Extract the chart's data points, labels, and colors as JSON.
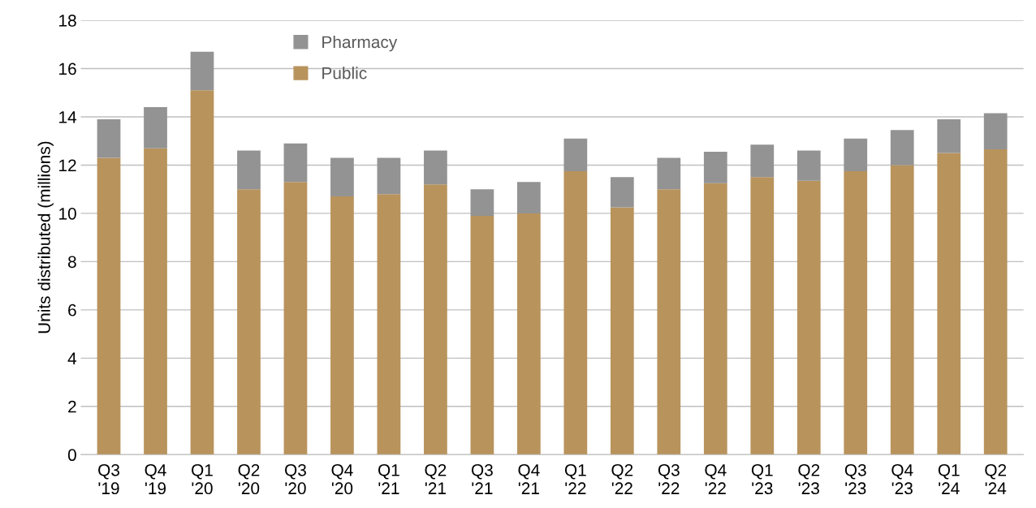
{
  "chart_data": {
    "type": "bar",
    "stacked": true,
    "ylabel": "Units distributed (millions)",
    "categories": [
      "Q3\n'19",
      "Q4\n'19",
      "Q1\n'20",
      "Q2\n'20",
      "Q3\n'20",
      "Q4\n'20",
      "Q1\n'21",
      "Q2\n'21",
      "Q3\n'21",
      "Q4\n'21",
      "Q1\n'22",
      "Q2\n'22",
      "Q3\n'22",
      "Q4\n'22",
      "Q1\n'23",
      "Q2\n'23",
      "Q3\n'23",
      "Q4\n'23",
      "Q1\n'24",
      "Q2\n'24"
    ],
    "series": [
      {
        "name": "Public",
        "color": "#b8935c",
        "values": [
          12.3,
          12.7,
          15.1,
          11.0,
          11.3,
          10.7,
          10.8,
          11.2,
          9.9,
          10.0,
          11.75,
          10.25,
          11.0,
          11.25,
          11.5,
          11.35,
          11.75,
          12.0,
          12.5,
          12.65
        ]
      },
      {
        "name": "Pharmacy",
        "color": "#939393",
        "values": [
          1.6,
          1.7,
          1.6,
          1.6,
          1.6,
          1.6,
          1.5,
          1.4,
          1.1,
          1.3,
          1.35,
          1.25,
          1.3,
          1.3,
          1.35,
          1.25,
          1.35,
          1.45,
          1.4,
          1.5
        ]
      }
    ],
    "ylim": [
      0,
      18
    ],
    "yticks": [
      0,
      2,
      4,
      6,
      8,
      10,
      12,
      14,
      16,
      18
    ],
    "grid": "y",
    "legend": "top"
  }
}
